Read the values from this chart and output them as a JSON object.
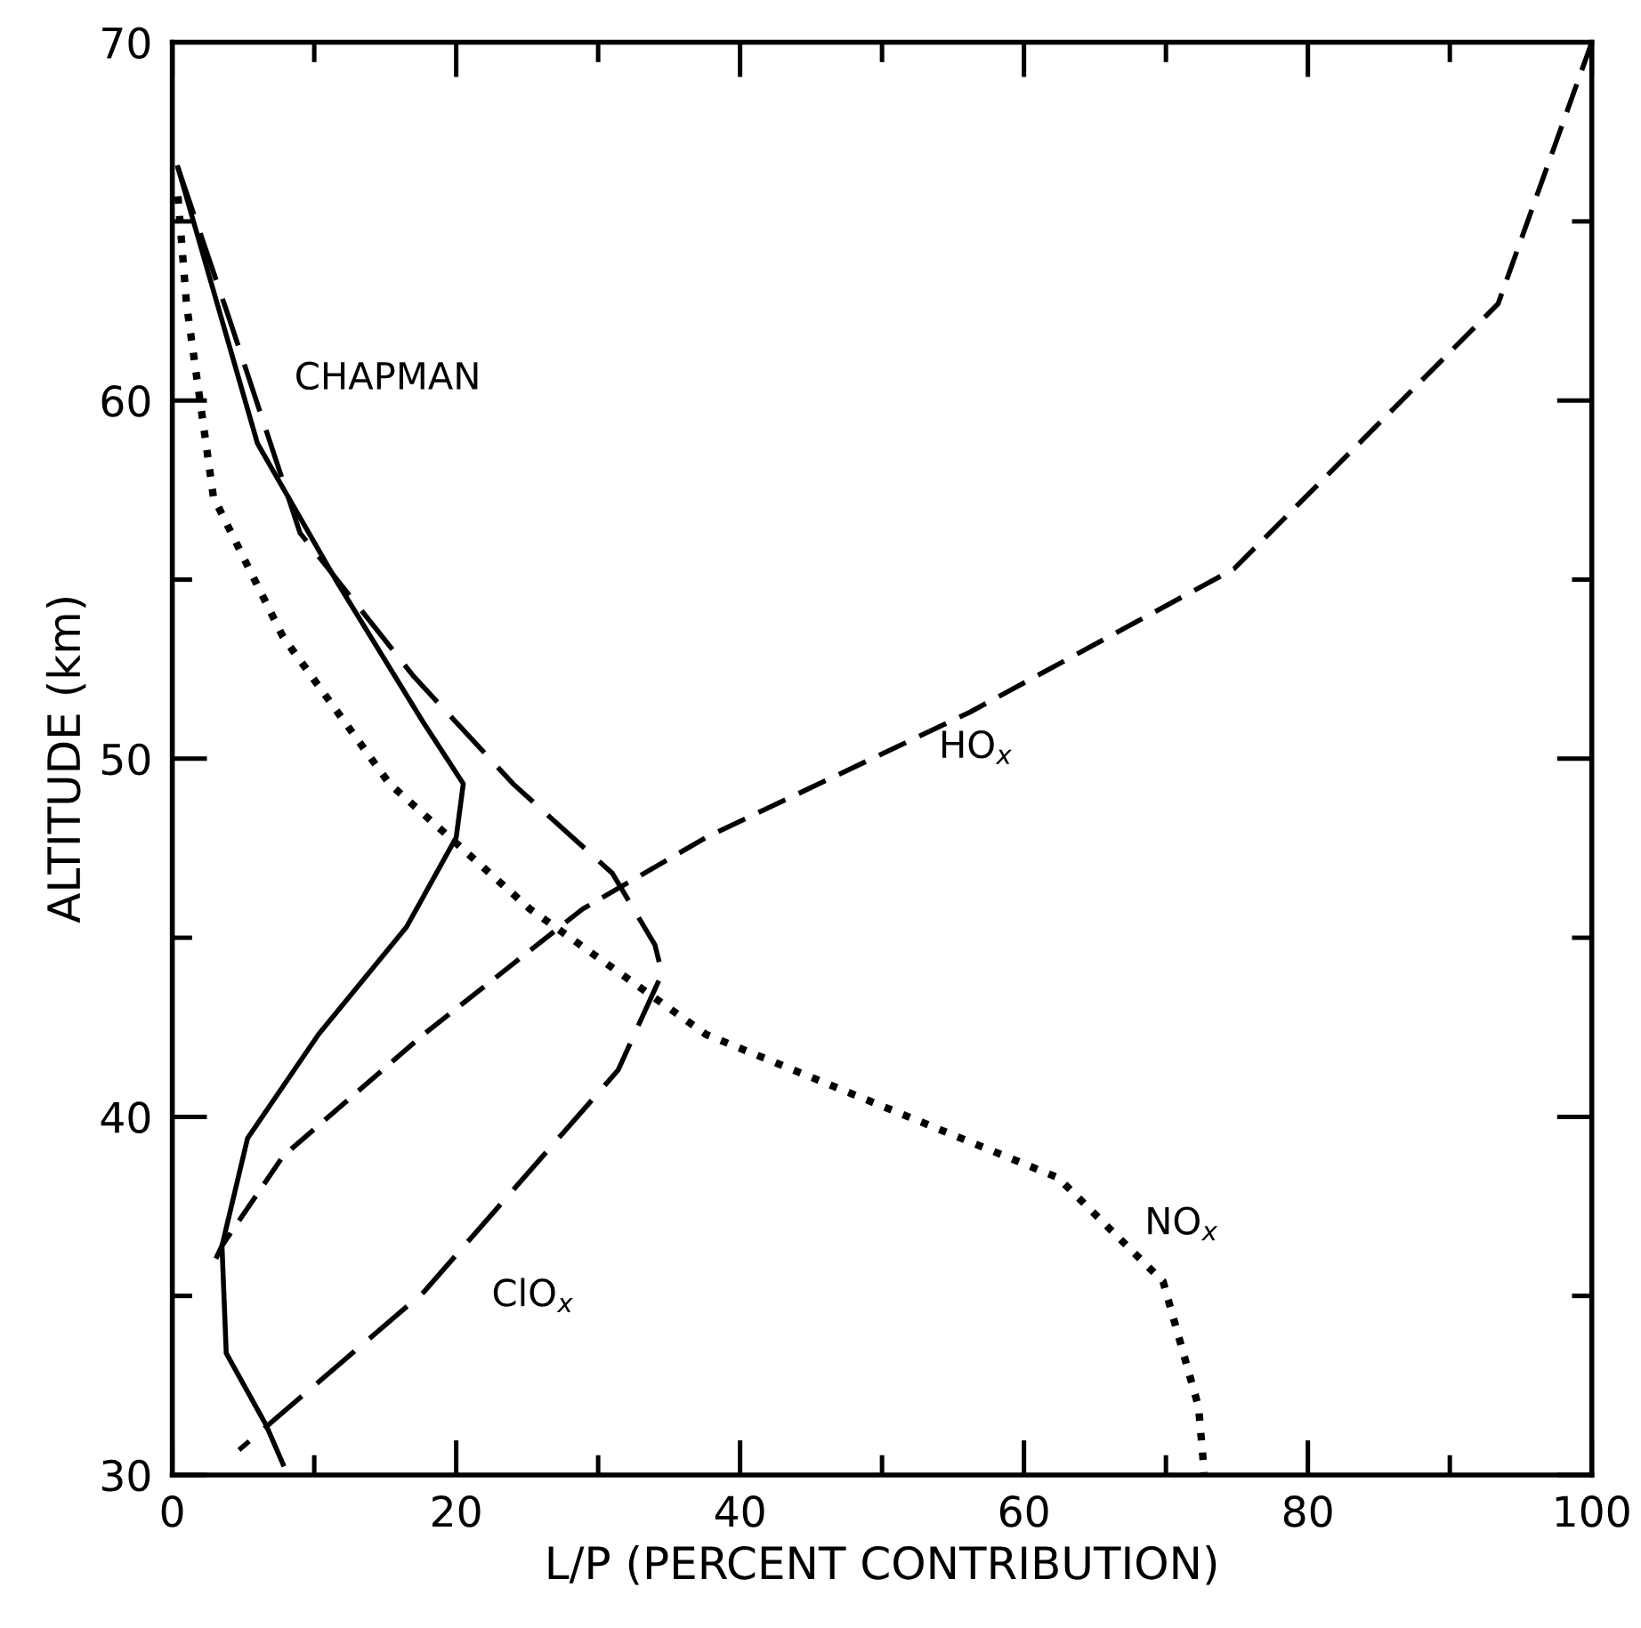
{
  "chart_data": {
    "type": "line",
    "xlabel": "L/P (PERCENT CONTRIBUTION)",
    "ylabel": "ALTITUDE (km)",
    "xlim": [
      0,
      100
    ],
    "ylim": [
      30,
      70
    ],
    "xticks": [
      0,
      20,
      40,
      60,
      80,
      100
    ],
    "yticks": [
      30,
      40,
      50,
      60,
      70
    ],
    "grid": false,
    "legend": false,
    "series": [
      {
        "name": "CHAPMAN",
        "color": "#000000",
        "line_style": "solid",
        "x": [
          0.4,
          6,
          11.5,
          17.7,
          20.5,
          20,
          16.5,
          10.3,
          5.3,
          3.5,
          3.8,
          6.6,
          7.8
        ],
        "values": [
          66.5,
          58.8,
          55,
          51,
          49.3,
          47.8,
          45.3,
          42.3,
          39.4,
          36.4,
          33.4,
          31.4,
          30.3
        ]
      },
      {
        "name": "HO$_{x}$",
        "color": "#000000",
        "line_style": "dashed",
        "x": [
          100,
          93.4,
          74.8,
          56.2,
          37.6,
          28.9,
          17.7,
          7.8,
          3.5,
          2.9
        ],
        "values": [
          70,
          62.7,
          55.3,
          51.3,
          47.8,
          45.8,
          42.3,
          38.9,
          36.4,
          35.9
        ]
      },
      {
        "name": "NO$_{x}$",
        "color": "#000000",
        "line_style": "dotted",
        "x": [
          0.4,
          1,
          2.9,
          7.8,
          15.3,
          25.2,
          37.6,
          50,
          62.4,
          69.8,
          72.3,
          72.7
        ],
        "values": [
          65.7,
          62.7,
          57.3,
          53.4,
          49.3,
          45.8,
          42.3,
          40.3,
          38.3,
          35.4,
          31.9,
          30.05
        ]
      },
      {
        "name": "ClO$_{x}$",
        "color": "#000000",
        "line_style": "dashed",
        "x": [
          0.4,
          4,
          9,
          17,
          24,
          31,
          34,
          34.5,
          31.4,
          17.7,
          4.7
        ],
        "values": [
          66.5,
          62.3,
          56.3,
          52.3,
          49.3,
          46.8,
          44.8,
          44,
          41.3,
          35.1,
          30.7
        ]
      }
    ]
  }
}
